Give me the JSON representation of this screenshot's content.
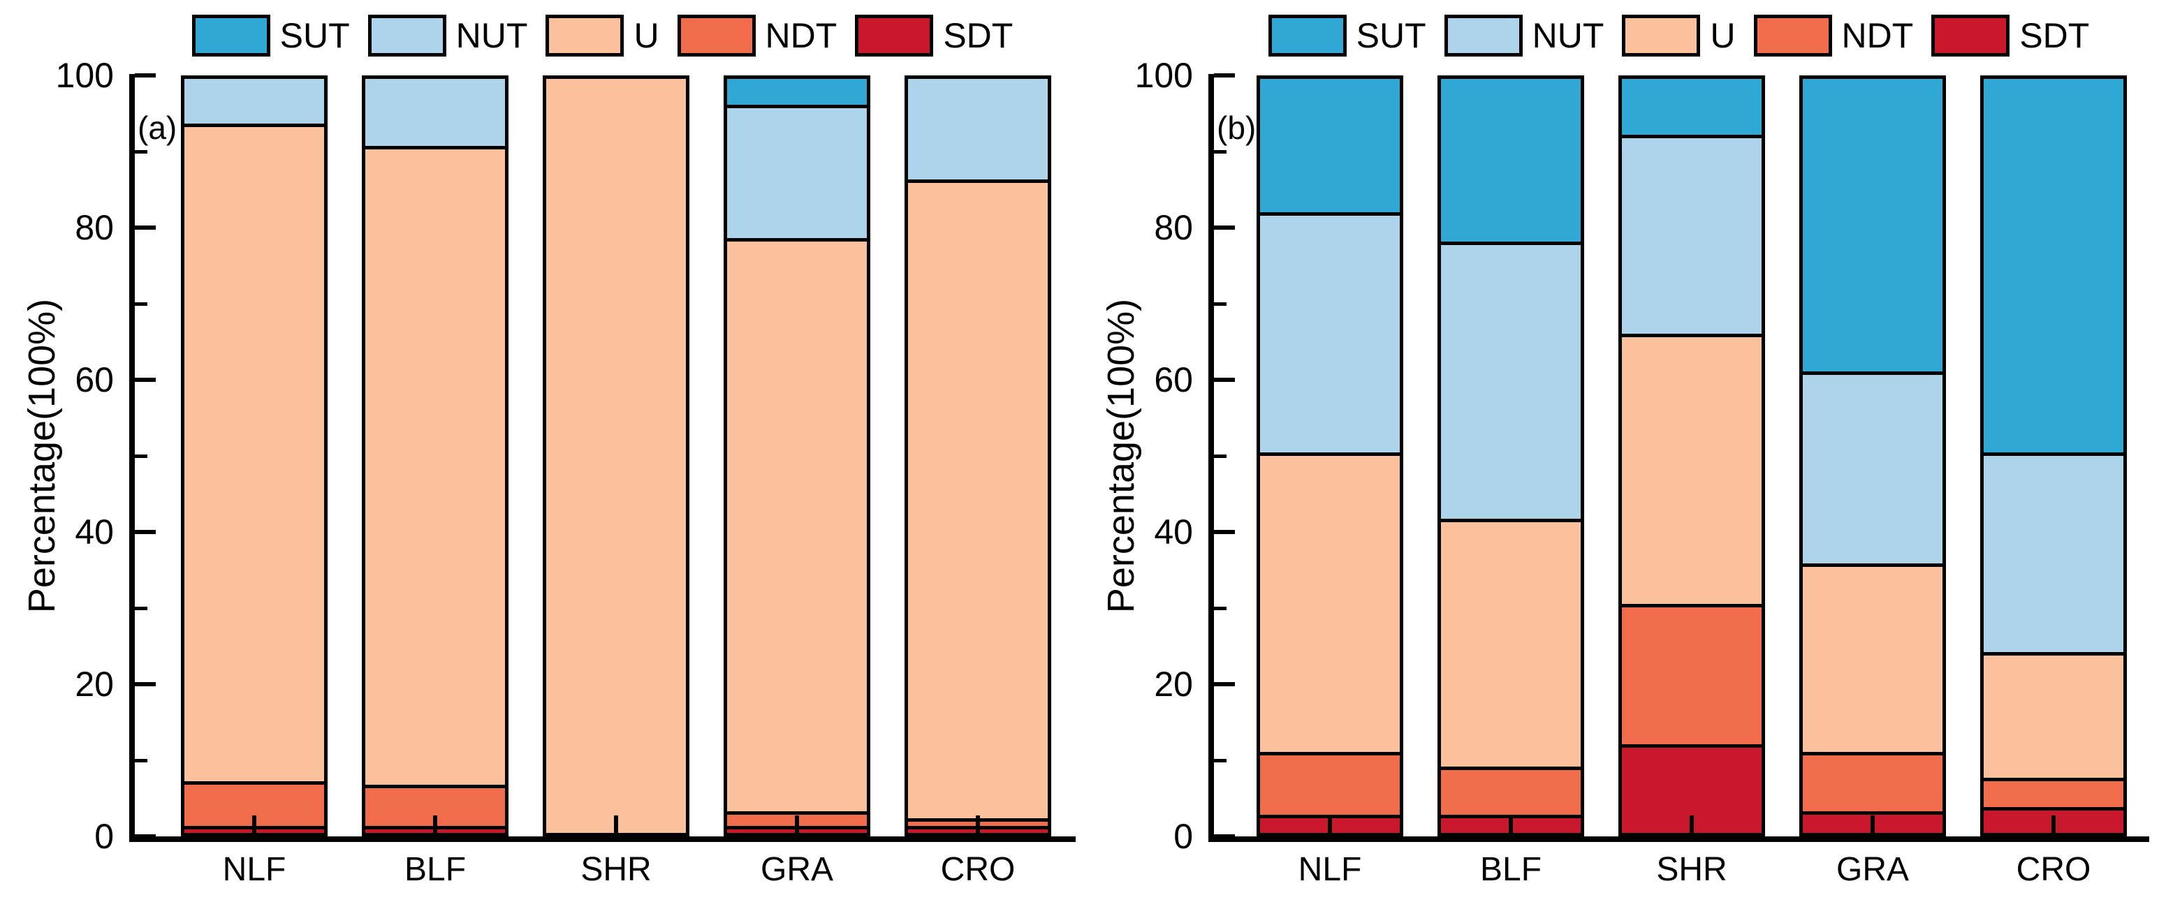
{
  "figure": {
    "background": "#ffffff"
  },
  "chart_data": [
    {
      "type": "bar",
      "stacked": true,
      "panel_label": "(a)",
      "ylabel": "Percentage(100%)",
      "xlabel": "",
      "ylim": [
        0,
        100
      ],
      "yticks_major": [
        0,
        20,
        40,
        60,
        80,
        100
      ],
      "yticks_minor": [
        10,
        30,
        50,
        70,
        90
      ],
      "grid": false,
      "legend_position": "top",
      "categories": [
        "NLF",
        "BLF",
        "SHR",
        "GRA",
        "CRO"
      ],
      "series": [
        {
          "name": "SUT",
          "color": "#2FA8D6",
          "values": [
            0,
            0,
            0,
            3.5,
            0
          ]
        },
        {
          "name": "NUT",
          "color": "#ADD4EB",
          "values": [
            6,
            9,
            0,
            17.5,
            13.5
          ]
        },
        {
          "name": "U",
          "color": "#FBC19C",
          "values": [
            88,
            85.5,
            100,
            77,
            85.5
          ]
        },
        {
          "name": "NDT",
          "color": "#F16C4A",
          "values": [
            5.5,
            5,
            0,
            1.5,
            0.5
          ]
        },
        {
          "name": "SDT",
          "color": "#C9182B",
          "values": [
            0.5,
            0.5,
            0,
            0.5,
            0.5
          ]
        }
      ]
    },
    {
      "type": "bar",
      "stacked": true,
      "panel_label": "(b)",
      "ylabel": "Percentage(100%)",
      "xlabel": "",
      "ylim": [
        0,
        100
      ],
      "yticks_major": [
        0,
        20,
        40,
        60,
        80,
        100
      ],
      "yticks_minor": [
        10,
        30,
        50,
        70,
        90
      ],
      "grid": false,
      "legend_position": "top",
      "categories": [
        "NLF",
        "BLF",
        "SHR",
        "GRA",
        "CRO"
      ],
      "series": [
        {
          "name": "SUT",
          "color": "#2FA8D6",
          "values": [
            18,
            22,
            7.5,
            39.5,
            50.5
          ]
        },
        {
          "name": "NUT",
          "color": "#ADD4EB",
          "values": [
            32,
            37,
            26.5,
            25.5,
            26.5
          ]
        },
        {
          "name": "U",
          "color": "#FBC19C",
          "values": [
            40,
            33,
            36,
            25,
            16.5
          ]
        },
        {
          "name": "NDT",
          "color": "#F16C4A",
          "values": [
            8,
            6,
            18.5,
            7.5,
            3.5
          ]
        },
        {
          "name": "SDT",
          "color": "#C9182B",
          "values": [
            2,
            2,
            11.5,
            2.5,
            3
          ]
        }
      ]
    }
  ]
}
